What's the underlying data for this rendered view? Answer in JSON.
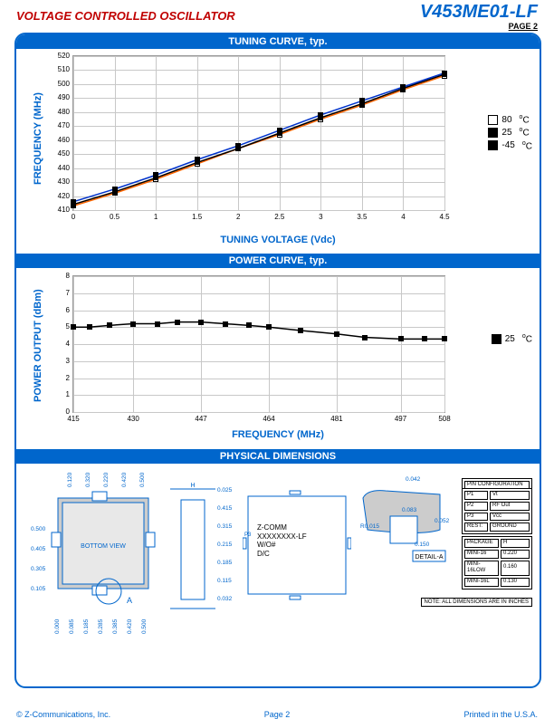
{
  "header": {
    "title_left": "VOLTAGE CONTROLLED OSCILLATOR",
    "part_number": "V453ME01-LF",
    "page_num_top": "PAGE 2"
  },
  "colors": {
    "accent": "#0066cc",
    "brand_red": "#c00000",
    "grid": "#c8c8c8",
    "line_orange": "#ff6600",
    "line_black": "#000000",
    "line_blue": "#0033cc"
  },
  "tuning_chart": {
    "banner": "TUNING CURVE, typ.",
    "ylabel": "FREQUENCY (MHz)",
    "xlabel": "TUNING VOLTAGE (Vdc)",
    "yticks": [
      "410",
      "420",
      "430",
      "440",
      "450",
      "460",
      "470",
      "480",
      "490",
      "500",
      "510",
      "520"
    ],
    "xticks": [
      "0",
      "0.5",
      "1",
      "1.5",
      "2",
      "2.5",
      "3",
      "3.5",
      "4",
      "4.5"
    ],
    "xmin": 0,
    "xmax": 4.5,
    "ymin": 410,
    "ymax": 520,
    "series": [
      {
        "name": "80",
        "temp": "80",
        "marker": "open",
        "color": "#ff6600",
        "data": [
          [
            0,
            413
          ],
          [
            0.5,
            422
          ],
          [
            1,
            432
          ],
          [
            1.5,
            443
          ],
          [
            2,
            454
          ],
          [
            2.5,
            464
          ],
          [
            3,
            475
          ],
          [
            3.5,
            485
          ],
          [
            4,
            496
          ],
          [
            4.5,
            506
          ]
        ]
      },
      {
        "name": "25",
        "temp": "25",
        "marker": "filled",
        "color": "#000000",
        "data": [
          [
            0,
            414
          ],
          [
            0.5,
            423
          ],
          [
            1,
            433
          ],
          [
            1.5,
            444
          ],
          [
            2,
            454
          ],
          [
            2.5,
            465
          ],
          [
            3,
            476
          ],
          [
            3.5,
            486
          ],
          [
            4,
            497
          ],
          [
            4.5,
            507
          ]
        ]
      },
      {
        "name": "m45",
        "temp": "-45",
        "marker": "filled",
        "color": "#0033cc",
        "data": [
          [
            0,
            416
          ],
          [
            0.5,
            425
          ],
          [
            1,
            435
          ],
          [
            1.5,
            446
          ],
          [
            2,
            456
          ],
          [
            2.5,
            467
          ],
          [
            3,
            478
          ],
          [
            3.5,
            488
          ],
          [
            4,
            498
          ],
          [
            4.5,
            508
          ]
        ]
      }
    ],
    "legend": [
      {
        "marker": "open",
        "label": "80",
        "unit": "°C"
      },
      {
        "marker": "filled",
        "label": "25",
        "unit": "°C"
      },
      {
        "marker": "filled",
        "label": "-45",
        "unit": "°C"
      }
    ]
  },
  "power_chart": {
    "banner": "POWER CURVE, typ.",
    "ylabel": "POWER OUTPUT (dBm)",
    "xlabel": "FREQUENCY (MHz)",
    "yticks": [
      "0",
      "1",
      "2",
      "3",
      "4",
      "5",
      "6",
      "7",
      "8"
    ],
    "xticks": [
      "415",
      "430",
      "447",
      "464",
      "481",
      "497",
      "508"
    ],
    "xmin": 415,
    "xmax": 508,
    "ymin": 0,
    "ymax": 8,
    "series": [
      {
        "name": "25",
        "temp": "25",
        "marker": "filled",
        "color": "#000000",
        "data": [
          [
            415,
            5.0
          ],
          [
            419,
            5.0
          ],
          [
            424,
            5.1
          ],
          [
            430,
            5.2
          ],
          [
            436,
            5.2
          ],
          [
            441,
            5.3
          ],
          [
            447,
            5.3
          ],
          [
            453,
            5.2
          ],
          [
            459,
            5.1
          ],
          [
            464,
            5.0
          ],
          [
            472,
            4.8
          ],
          [
            481,
            4.6
          ],
          [
            488,
            4.4
          ],
          [
            497,
            4.3
          ],
          [
            503,
            4.3
          ],
          [
            508,
            4.3
          ]
        ]
      }
    ],
    "legend": [
      {
        "marker": "filled",
        "label": "25",
        "unit": "°C"
      }
    ]
  },
  "dims": {
    "banner": "PHYSICAL DIMENSIONS",
    "bottom_view": "BOTTOM VIEW",
    "detail_a": "DETAIL-A",
    "note": "NOTE: ALL DIMENSIONS ARE IN INCHES",
    "chip_text": [
      "Z-COMM",
      "XXXXXXXX-LF",
      "W/O#",
      "D/C"
    ],
    "pin_config_title": "PIN CONFIGURATION",
    "pins": [
      [
        "P1",
        "Vt"
      ],
      [
        "P2",
        "RF Out"
      ],
      [
        "P3",
        "Vcc"
      ],
      [
        "REST:",
        "GROUND"
      ]
    ],
    "pkg_header": [
      "PACKAGE",
      "H"
    ],
    "pkg_rows": [
      [
        "MINI-16",
        "0.220"
      ],
      [
        "MINI-16LOW",
        "0.160"
      ],
      [
        "MINI-16L",
        "0.130"
      ]
    ],
    "left_dims_y": [
      "0.105",
      "0.305",
      "0.405",
      "0.500"
    ],
    "left_dims_x": [
      "0.000",
      "0.085",
      "0.185",
      "0.285",
      "0.385",
      "0.420",
      "0.500"
    ],
    "top_dims": [
      "0.120",
      "0.320",
      "0.220",
      "0.420",
      "0.500"
    ],
    "side_dims": [
      "0.025",
      "0.415",
      "0.315",
      "0.215",
      "0.185",
      "0.115",
      "0.032"
    ],
    "h_label": "H",
    "detail_dims": [
      "0.042",
      "0.083",
      "R0.015",
      "0.150",
      "0.052"
    ]
  },
  "footer": {
    "left": "© Z-Communications, Inc.",
    "center": "Page 2",
    "right": "Printed in the U.S.A."
  }
}
